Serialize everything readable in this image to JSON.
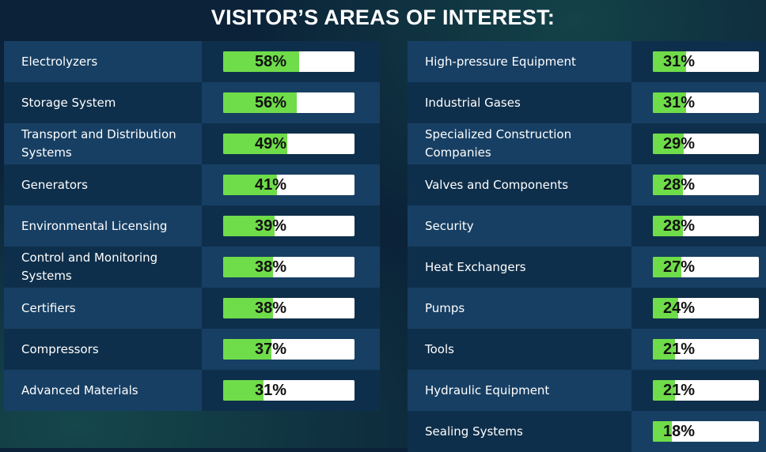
{
  "title": "VISITOR’S AREAS OF INTEREST:",
  "colors": {
    "bar_fill": "#6fdc4a",
    "bar_track": "#ffffff",
    "background": "#0b2238"
  },
  "chart_data": [
    {
      "type": "bar",
      "orientation": "horizontal",
      "title": "VISITOR’S AREAS OF INTEREST:",
      "ylim": [
        0,
        100
      ],
      "categories": [
        "Electrolyzers",
        "Storage System",
        "Transport and Distribution Systems",
        "Generators",
        "Environmental Licensing",
        "Control and Monitoring Systems",
        "Certifiers",
        "Compressors",
        "Advanced Materials"
      ],
      "values": [
        58,
        56,
        49,
        41,
        39,
        38,
        38,
        37,
        31
      ],
      "value_labels": [
        "58%",
        "56%",
        "49%",
        "41%",
        "39%",
        "38%",
        "38%",
        "37%",
        "31%"
      ]
    },
    {
      "type": "bar",
      "orientation": "horizontal",
      "ylim": [
        0,
        100
      ],
      "categories": [
        "High-pressure Equipment",
        "Industrial Gases",
        "Specialized Construction Companies",
        "Valves and Components",
        "Security",
        "Heat Exchangers",
        "Pumps",
        "Tools",
        "Hydraulic Equipment",
        "Sealing Systems"
      ],
      "values": [
        31,
        31,
        29,
        28,
        28,
        27,
        24,
        21,
        21,
        18
      ],
      "value_labels": [
        "31%",
        "31%",
        "29%",
        "28%",
        "28%",
        "27%",
        "24%",
        "21%",
        "21%",
        "18%"
      ]
    }
  ]
}
